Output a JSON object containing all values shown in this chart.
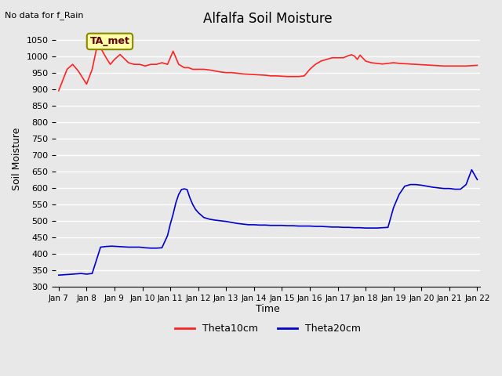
{
  "title": "Alfalfa Soil Moisture",
  "top_left_note": "No data for f_Rain",
  "ylabel": "Soil Moisture",
  "xlabel": "Time",
  "ylim": [
    300,
    1075
  ],
  "yticks": [
    300,
    350,
    400,
    450,
    500,
    550,
    600,
    650,
    700,
    750,
    800,
    850,
    900,
    950,
    1000,
    1050
  ],
  "bg_color": "#e8e8e8",
  "plot_bg_color": "#e8e8e8",
  "grid_color": "#ffffff",
  "legend_label1": "Theta10cm",
  "legend_label2": "Theta20cm",
  "line1_color": "#ff2222",
  "line2_color": "#0000cc",
  "annotation_text": "TA_met",
  "annotation_bg": "#ffffaa",
  "annotation_border": "#888800",
  "x_tick_labels": [
    "Jan 7",
    "Jan 8",
    "Jan 9",
    "Jan 10",
    "Jan 11",
    "Jan 12",
    "Jan 13",
    "Jan 14",
    "Jan 15",
    "Jan 16",
    "Jan 17",
    "Jan 18",
    "Jan 19",
    "Jan 20",
    "Jan 21",
    "Jan 22"
  ],
  "theta10_x": [
    0,
    0.3,
    0.5,
    0.7,
    1.0,
    1.2,
    1.35,
    1.5,
    1.7,
    1.85,
    2.0,
    2.2,
    2.5,
    2.7,
    2.9,
    3.1,
    3.3,
    3.5,
    3.7,
    3.9,
    4.1,
    4.3,
    4.5,
    4.65,
    4.8,
    5.0,
    5.2,
    5.4,
    5.6,
    5.8,
    6.0,
    6.2,
    6.4,
    6.6,
    6.8,
    7.0,
    7.2,
    7.4,
    7.6,
    7.8,
    8.0,
    8.2,
    8.4,
    8.6,
    8.8,
    9.0,
    9.2,
    9.4,
    9.6,
    9.8,
    10.0,
    10.2,
    10.4,
    10.5,
    10.6,
    10.7,
    10.8,
    11.0,
    11.2,
    11.4,
    11.6,
    11.8,
    12.0,
    12.2,
    12.4,
    12.6,
    12.8,
    13.0,
    13.2,
    13.4,
    13.6,
    13.8,
    14.0,
    14.2,
    14.4,
    14.6,
    14.8,
    15.0
  ],
  "theta10_y": [
    895,
    960,
    975,
    955,
    915,
    960,
    1020,
    1025,
    995,
    975,
    990,
    1005,
    980,
    975,
    975,
    970,
    975,
    975,
    980,
    975,
    1015,
    975,
    965,
    965,
    960,
    960,
    960,
    958,
    955,
    952,
    950,
    950,
    948,
    946,
    945,
    944,
    943,
    942,
    940,
    940,
    939,
    938,
    938,
    938,
    940,
    960,
    975,
    985,
    990,
    995,
    995,
    995,
    1002,
    1004,
    1000,
    990,
    1003,
    985,
    980,
    978,
    976,
    978,
    980,
    978,
    977,
    976,
    975,
    974,
    973,
    972,
    971,
    970,
    970,
    970,
    970,
    970,
    971,
    972
  ],
  "theta20_x": [
    0,
    0.5,
    0.8,
    1.0,
    1.2,
    1.5,
    1.7,
    1.9,
    2.1,
    2.3,
    2.5,
    2.7,
    2.9,
    3.1,
    3.3,
    3.5,
    3.7,
    3.9,
    4.0,
    4.1,
    4.2,
    4.3,
    4.4,
    4.5,
    4.6,
    4.7,
    4.8,
    4.9,
    5.0,
    5.2,
    5.4,
    5.6,
    5.8,
    6.0,
    6.2,
    6.4,
    6.6,
    6.8,
    7.0,
    7.2,
    7.4,
    7.6,
    7.8,
    8.0,
    8.2,
    8.4,
    8.6,
    8.8,
    9.0,
    9.2,
    9.4,
    9.6,
    9.8,
    10.0,
    10.2,
    10.4,
    10.6,
    10.8,
    11.0,
    11.2,
    11.4,
    11.6,
    11.8,
    12.0,
    12.2,
    12.4,
    12.6,
    12.8,
    13.0,
    13.2,
    13.4,
    13.6,
    13.8,
    14.0,
    14.2,
    14.4,
    14.6,
    14.8,
    15.0
  ],
  "theta20_y": [
    335,
    338,
    340,
    338,
    340,
    420,
    422,
    423,
    422,
    421,
    420,
    420,
    420,
    418,
    417,
    417,
    418,
    455,
    490,
    520,
    555,
    580,
    595,
    597,
    595,
    570,
    550,
    535,
    525,
    510,
    505,
    502,
    500,
    498,
    495,
    492,
    490,
    488,
    488,
    487,
    487,
    486,
    486,
    486,
    485,
    485,
    484,
    484,
    484,
    483,
    483,
    482,
    481,
    481,
    480,
    480,
    479,
    479,
    478,
    478,
    478,
    479,
    480,
    540,
    580,
    605,
    610,
    610,
    608,
    605,
    602,
    600,
    598,
    598,
    596,
    596,
    610,
    655,
    625
  ]
}
